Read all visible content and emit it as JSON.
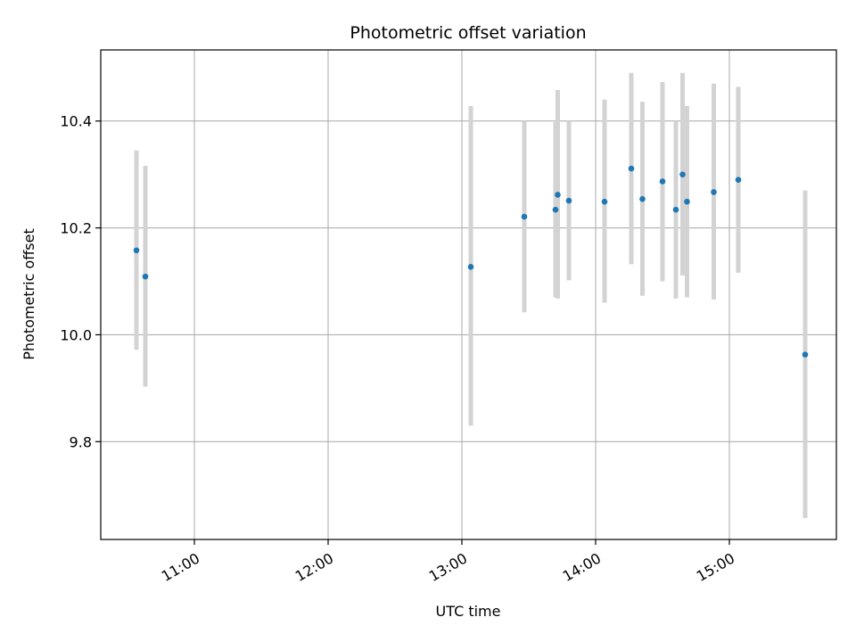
{
  "chart_data": {
    "type": "scatter",
    "title": "Photometric offset variation",
    "xlabel": "UTC time",
    "ylabel": "Photometric offset",
    "x_axis_kind": "time",
    "xlim": [
      "10:18",
      "15:48"
    ],
    "ylim": [
      9.617,
      10.533
    ],
    "x_ticks": [
      "11:00",
      "12:00",
      "13:00",
      "14:00",
      "15:00"
    ],
    "y_ticks": [
      9.8,
      10.0,
      10.2,
      10.4
    ],
    "y_tick_labels": [
      "9.8",
      "10.0",
      "10.2",
      "10.4"
    ],
    "grid": true,
    "colors": {
      "point": "#1f77b4",
      "errorbar": "#d3d3d3",
      "grid": "#b0b0b0"
    },
    "series": [
      {
        "points": [
          {
            "x": "10:34",
            "y": 10.158,
            "low": 9.972,
            "high": 10.345
          },
          {
            "x": "10:38",
            "y": 10.109,
            "low": 9.903,
            "high": 10.316
          },
          {
            "x": "13:04",
            "y": 10.127,
            "low": 9.83,
            "high": 10.428
          },
          {
            "x": "13:28",
            "y": 10.221,
            "low": 10.042,
            "high": 10.4
          },
          {
            "x": "13:42",
            "y": 10.234,
            "low": 10.07,
            "high": 10.398
          },
          {
            "x": "13:43",
            "y": 10.262,
            "low": 10.068,
            "high": 10.458
          },
          {
            "x": "13:48",
            "y": 10.251,
            "low": 10.102,
            "high": 10.4
          },
          {
            "x": "14:04",
            "y": 10.249,
            "low": 10.06,
            "high": 10.44
          },
          {
            "x": "14:16",
            "y": 10.311,
            "low": 10.132,
            "high": 10.49
          },
          {
            "x": "14:21",
            "y": 10.254,
            "low": 10.073,
            "high": 10.436
          },
          {
            "x": "14:30",
            "y": 10.287,
            "low": 10.1,
            "high": 10.473
          },
          {
            "x": "14:36",
            "y": 10.234,
            "low": 10.068,
            "high": 10.4
          },
          {
            "x": "14:39",
            "y": 10.3,
            "low": 10.111,
            "high": 10.49
          },
          {
            "x": "14:41",
            "y": 10.249,
            "low": 10.07,
            "high": 10.428
          },
          {
            "x": "14:53",
            "y": 10.267,
            "low": 10.066,
            "high": 10.47
          },
          {
            "x": "15:04",
            "y": 10.29,
            "low": 10.116,
            "high": 10.464
          },
          {
            "x": "15:34",
            "y": 9.963,
            "low": 9.657,
            "high": 10.27
          }
        ]
      }
    ]
  }
}
